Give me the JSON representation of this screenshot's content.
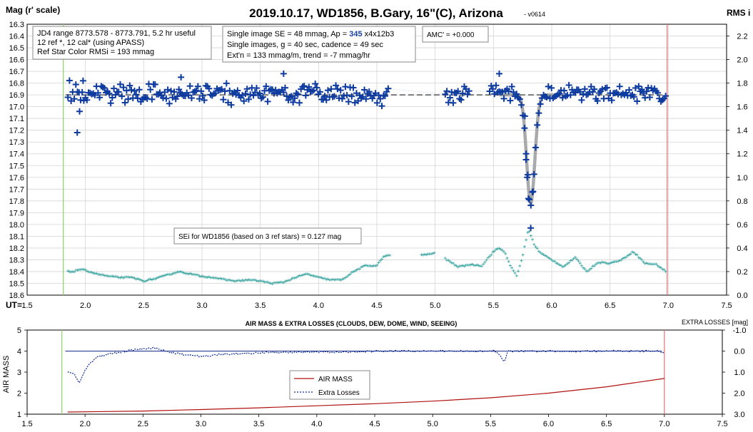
{
  "chart_data": [
    {
      "type": "scatter",
      "title": "2019.10.17, WD1856, B.Gary, 16\"(C), Arizona",
      "version": "- v0614",
      "ylabel": "Mag (r' scale)",
      "y2label": "RMS i",
      "xlabel": "UT=",
      "xlim": [
        1.5,
        7.5
      ],
      "ylim": [
        16.3,
        18.6
      ],
      "y_inverted": true,
      "y2lim": [
        0.0,
        2.3
      ],
      "x_ticks": [
        "1.5",
        "2.0",
        "2.5",
        "3.0",
        "3.5",
        "4.0",
        "4.5",
        "5.0",
        "5.5",
        "6.0",
        "6.5",
        "7.0",
        "7.5"
      ],
      "y_ticks": [
        "16.3",
        "16.4",
        "16.5",
        "16.6",
        "16.7",
        "16.8",
        "16.9",
        "17.0",
        "17.1",
        "17.2",
        "17.3",
        "17.4",
        "17.5",
        "17.6",
        "17.7",
        "17.8",
        "17.9",
        "18.0",
        "18.1",
        "18.2",
        "18.3",
        "18.4",
        "18.5",
        "18.6"
      ],
      "y2_ticks": [
        "2.2",
        "2.0",
        "1.8",
        "1.6",
        "1.4",
        "1.2",
        "1.0",
        "0.8",
        "0.6",
        "0.4",
        "0.2",
        "0.0"
      ],
      "start_line_x": 1.81,
      "end_line_x": 6.99,
      "info_box_1": [
        "JD4 range 8773.578 - 8773.791, 5.2 hr useful",
        " 12 ref *, 12 cal* (using APASS)",
        "Ref Star Color RMSi = 193 mmag"
      ],
      "info_box_2": {
        "line1_prefix": "Single image SE = 48 mmag, Ap = ",
        "line1_ap": "345",
        "line1_suffix": " x4x12b3",
        "line2": "Single images, g = 40 sec, cadence = 49 sec",
        "line3": "Ext'n = 133 mmag/m, trend = -7 mmag/hr"
      },
      "amc_box": "AMC' = +0.000",
      "sei_box": "SEi for WD1856 (based on 3 ref stars) = 0.127 mag",
      "baseline_mag": 16.9,
      "transit_model": {
        "center_ut": 5.82,
        "depth_mag": 0.92,
        "sigma_hr": 0.035
      },
      "series": [
        {
          "name": "WD1856 mag",
          "color": "#0d3a9e",
          "marker": "plus",
          "x_start": 1.85,
          "x_end": 6.98,
          "gaps": [
            [
              4.6,
              5.08
            ],
            [
              5.3,
              5.46
            ]
          ],
          "baseline": 16.89,
          "scatter": 0.05,
          "outliers": [
            [
              1.93,
              17.22
            ],
            [
              1.95,
              17.04
            ],
            [
              1.98,
              16.78
            ],
            [
              2.82,
              16.75
            ],
            [
              3.7,
              16.72
            ],
            [
              5.55,
              16.72
            ],
            [
              5.82,
              18.03
            ],
            [
              5.8,
              17.78
            ],
            [
              5.79,
              17.6
            ],
            [
              5.78,
              17.45
            ],
            [
              5.77,
              17.08
            ],
            [
              5.84,
              17.72
            ]
          ]
        },
        {
          "name": "SEi",
          "color": "#3aa6a0",
          "marker": "plus-small",
          "axis": "y2",
          "points": [
            [
              1.85,
              0.2
            ],
            [
              1.9,
              0.2
            ],
            [
              1.95,
              0.22
            ],
            [
              2.0,
              0.21
            ],
            [
              2.1,
              0.18
            ],
            [
              2.2,
              0.16
            ],
            [
              2.3,
              0.15
            ],
            [
              2.4,
              0.15
            ],
            [
              2.5,
              0.12
            ],
            [
              2.6,
              0.14
            ],
            [
              2.7,
              0.17
            ],
            [
              2.8,
              0.2
            ],
            [
              2.9,
              0.18
            ],
            [
              3.0,
              0.16
            ],
            [
              3.1,
              0.15
            ],
            [
              3.2,
              0.13
            ],
            [
              3.3,
              0.12
            ],
            [
              3.4,
              0.13
            ],
            [
              3.5,
              0.12
            ],
            [
              3.6,
              0.1
            ],
            [
              3.7,
              0.11
            ],
            [
              3.8,
              0.15
            ],
            [
              3.9,
              0.18
            ],
            [
              4.0,
              0.15
            ],
            [
              4.1,
              0.13
            ],
            [
              4.2,
              0.13
            ],
            [
              4.3,
              0.2
            ],
            [
              4.4,
              0.25
            ],
            [
              4.5,
              0.25
            ],
            [
              4.55,
              0.32
            ],
            [
              4.6,
              0.34
            ],
            [
              4.9,
              0.34
            ],
            [
              4.95,
              0.35
            ],
            [
              5.05,
              0.36
            ],
            [
              5.1,
              0.3
            ],
            [
              5.2,
              0.24
            ],
            [
              5.3,
              0.26
            ],
            [
              5.4,
              0.25
            ],
            [
              5.5,
              0.37
            ],
            [
              5.55,
              0.4
            ],
            [
              5.6,
              0.36
            ],
            [
              5.65,
              0.24
            ],
            [
              5.7,
              0.16
            ],
            [
              5.75,
              0.33
            ],
            [
              5.8,
              0.56
            ],
            [
              5.85,
              0.43
            ],
            [
              5.9,
              0.36
            ],
            [
              6.0,
              0.3
            ],
            [
              6.1,
              0.24
            ],
            [
              6.2,
              0.32
            ],
            [
              6.3,
              0.2
            ],
            [
              6.4,
              0.28
            ],
            [
              6.5,
              0.27
            ],
            [
              6.6,
              0.3
            ],
            [
              6.7,
              0.37
            ],
            [
              6.8,
              0.27
            ],
            [
              6.9,
              0.26
            ],
            [
              6.98,
              0.2
            ]
          ]
        }
      ]
    },
    {
      "type": "line",
      "title": "AIR MASS & EXTRA LOSSES (CLOUDS, DEW, DOME, WIND, SEEING)",
      "ylabel": "AIR MASS",
      "y2label": "EXTRA LOSSES [mag]",
      "xlim": [
        1.5,
        7.5
      ],
      "ylim": [
        1,
        5
      ],
      "y2lim": [
        -1.0,
        3.0
      ],
      "x_ticks": [
        "1.5",
        "2.0",
        "2.5",
        "3.0",
        "3.5",
        "4.0",
        "4.5",
        "5.0",
        "5.5",
        "6.0",
        "6.5",
        "7.0",
        "7.5"
      ],
      "y_ticks": [
        "5",
        "4",
        "3",
        "2",
        "1"
      ],
      "y2_ticks": [
        "-1.0",
        "0.0",
        "1.0",
        "2.0",
        "3.0"
      ],
      "start_line_x": 1.8,
      "end_line_x": 7.0,
      "legend": [
        "AIR MASS",
        "Extra Losses"
      ],
      "zero_line_losses": 0.0,
      "series": [
        {
          "name": "AIR MASS",
          "color": "#b01010",
          "points": [
            [
              1.85,
              1.1
            ],
            [
              2.5,
              1.15
            ],
            [
              3.0,
              1.22
            ],
            [
              3.5,
              1.3
            ],
            [
              4.0,
              1.4
            ],
            [
              4.5,
              1.5
            ],
            [
              5.0,
              1.62
            ],
            [
              5.5,
              1.78
            ],
            [
              6.0,
              2.0
            ],
            [
              6.5,
              2.3
            ],
            [
              7.0,
              2.7
            ]
          ]
        },
        {
          "name": "Extra Losses",
          "color": "#0d2a9e",
          "points": [
            [
              1.85,
              1.0
            ],
            [
              1.9,
              1.05
            ],
            [
              1.95,
              1.5
            ],
            [
              2.0,
              0.9
            ],
            [
              2.05,
              0.55
            ],
            [
              2.1,
              0.3
            ],
            [
              2.2,
              0.15
            ],
            [
              2.3,
              0.05
            ],
            [
              2.4,
              -0.05
            ],
            [
              2.5,
              -0.1
            ],
            [
              2.6,
              -0.15
            ],
            [
              2.7,
              0.0
            ],
            [
              2.8,
              0.12
            ],
            [
              2.9,
              0.2
            ],
            [
              3.0,
              0.25
            ],
            [
              3.1,
              0.2
            ],
            [
              3.2,
              0.15
            ],
            [
              3.3,
              0.12
            ],
            [
              3.4,
              0.1
            ],
            [
              3.5,
              0.1
            ],
            [
              3.6,
              0.05
            ],
            [
              3.7,
              0.08
            ],
            [
              3.8,
              0.05
            ],
            [
              3.9,
              0.05
            ],
            [
              4.0,
              0.05
            ],
            [
              4.2,
              0.05
            ],
            [
              4.4,
              0.02
            ],
            [
              4.6,
              0.0
            ],
            [
              4.8,
              0.0
            ],
            [
              5.0,
              0.0
            ],
            [
              5.2,
              0.0
            ],
            [
              5.4,
              0.0
            ],
            [
              5.55,
              0.0
            ],
            [
              5.62,
              0.5
            ],
            [
              5.65,
              0.0
            ],
            [
              5.8,
              0.0
            ],
            [
              6.0,
              0.0
            ],
            [
              6.2,
              0.0
            ],
            [
              6.4,
              0.0
            ],
            [
              6.6,
              0.0
            ],
            [
              6.8,
              0.0
            ],
            [
              6.95,
              0.0
            ],
            [
              7.0,
              0.1
            ]
          ]
        }
      ]
    }
  ]
}
